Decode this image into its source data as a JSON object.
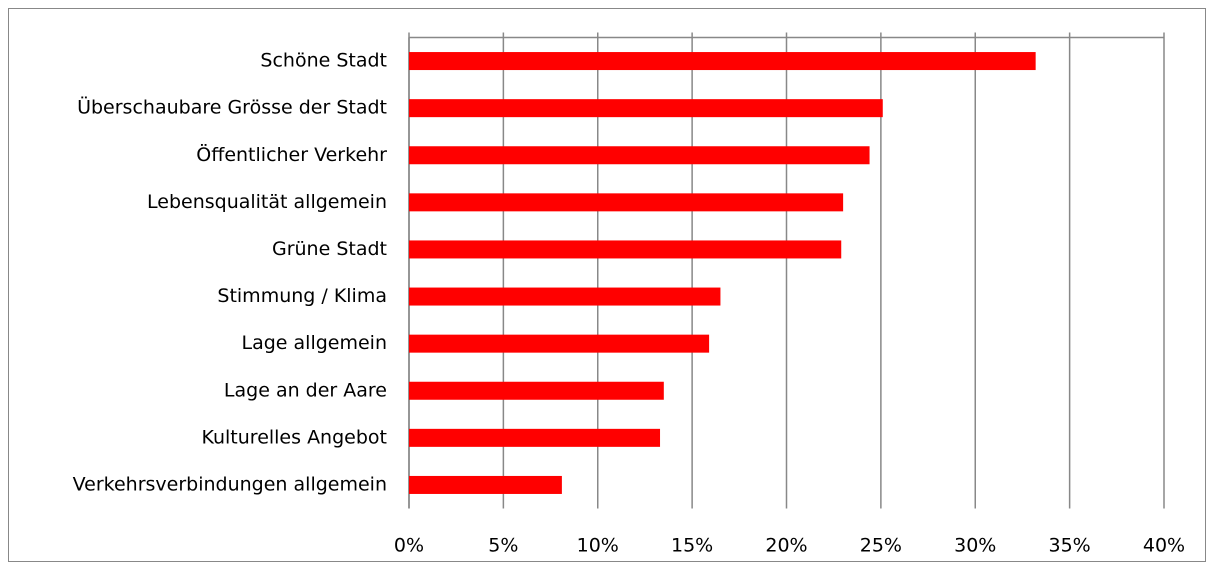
{
  "chart_data": {
    "type": "bar",
    "orientation": "horizontal",
    "categories": [
      "Schöne Stadt",
      "Überschaubare Grösse der Stadt",
      "Öffentlicher Verkehr",
      "Lebensqualität allgemein",
      "Grüne Stadt",
      "Stimmung / Klima",
      "Lage allgemein",
      "Lage an der Aare",
      "Kulturelles Angebot",
      "Verkehrsverbindungen allgemein"
    ],
    "values": [
      33.2,
      25.1,
      24.4,
      23.0,
      22.9,
      16.5,
      15.9,
      13.5,
      13.3,
      8.1
    ],
    "color": "#ff0000",
    "xlim": [
      0,
      40
    ],
    "xticks": [
      {
        "value": 0,
        "label": "0%"
      },
      {
        "value": 5,
        "label": "5%"
      },
      {
        "value": 10,
        "label": "10%"
      },
      {
        "value": 15,
        "label": "15%"
      },
      {
        "value": 20,
        "label": "20%"
      },
      {
        "value": 25,
        "label": "25%"
      },
      {
        "value": 30,
        "label": "30%"
      },
      {
        "value": 35,
        "label": "35%"
      },
      {
        "value": 40,
        "label": "40%"
      }
    ],
    "grid": true
  }
}
